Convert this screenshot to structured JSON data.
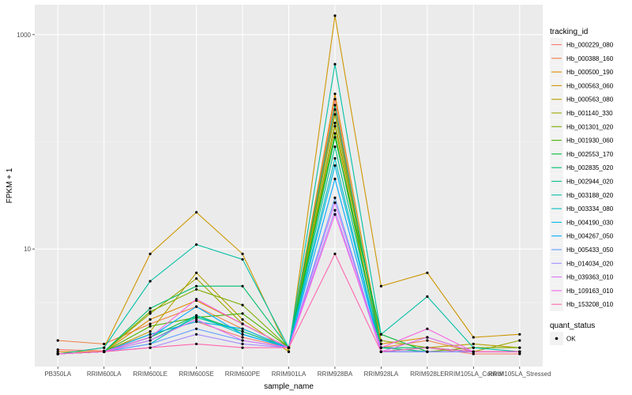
{
  "chart_data": {
    "type": "line",
    "title": "",
    "xlabel": "sample_name",
    "ylabel": "FPKM + 1",
    "y_scale": "log10",
    "ylim": [
      0.8,
      1900
    ],
    "y_ticks": [
      10,
      1000
    ],
    "y_tick_labels": [
      "10",
      "1000"
    ],
    "grid": true,
    "legend_position": "right",
    "categories": [
      "PB350LA",
      "RRIM600LA",
      "RRIM600LE",
      "RRIM600SE",
      "RRIM600PE",
      "RRIM901LA",
      "RRIM928BA",
      "RRIM928LA",
      "RRIM928LE",
      "RRIM105LA_Control",
      "RRIM105LA_Stressed"
    ],
    "color_legend": {
      "title": "tracking_id",
      "entries": [
        "Hb_000229_080",
        "Hb_000388_160",
        "Hb_000500_190",
        "Hb_000563_060",
        "Hb_000563_080",
        "Hb_001140_330",
        "Hb_001301_020",
        "Hb_001930_060",
        "Hb_002553_170",
        "Hb_002835_020",
        "Hb_002944_020",
        "Hb_003188_020",
        "Hb_003334_080",
        "Hb_004190_030",
        "Hb_004267_050",
        "Hb_005433_050",
        "Hb_014034_020",
        "Hb_039363_010",
        "Hb_109163_010",
        "Hb_153208_010"
      ]
    },
    "shape_legend": {
      "title": "quant_status",
      "entries": [
        "OK"
      ]
    },
    "series": [
      {
        "name": "Hb_000229_080",
        "color": "#F8766D",
        "values": [
          1.15,
          1.12,
          1.6,
          2.1,
          1.5,
          1.2,
          250,
          1.1,
          1.2,
          1.05,
          1.05
        ]
      },
      {
        "name": "Hb_000388_160",
        "color": "#EE8044",
        "values": [
          1.4,
          1.3,
          2.0,
          2.9,
          1.8,
          1.2,
          200,
          1.2,
          1.4,
          1.1,
          1.1
        ]
      },
      {
        "name": "Hb_000500_190",
        "color": "#DE8C00",
        "values": [
          1.1,
          1.1,
          2.2,
          3.3,
          2.0,
          1.2,
          280,
          1.3,
          1.5,
          1.1,
          1.1
        ]
      },
      {
        "name": "Hb_000563_060",
        "color": "#CD9600",
        "values": [
          1.05,
          1.2,
          9.0,
          22.0,
          9.0,
          1.1,
          1500,
          4.5,
          6.0,
          1.5,
          1.6
        ]
      },
      {
        "name": "Hb_000563_080",
        "color": "#B79F00",
        "values": [
          1.05,
          1.1,
          1.7,
          6.0,
          2.2,
          1.1,
          140,
          1.1,
          1.2,
          1.3,
          1.2
        ]
      },
      {
        "name": "Hb_001140_330",
        "color": "#9EA700",
        "values": [
          1.05,
          1.1,
          2.5,
          5.3,
          2.0,
          1.2,
          150,
          1.4,
          1.2,
          1.1,
          1.4
        ]
      },
      {
        "name": "Hb_001301_020",
        "color": "#7CAE00",
        "values": [
          1.05,
          1.1,
          2.6,
          4.2,
          3.0,
          1.2,
          180,
          1.2,
          1.1,
          1.2,
          1.2
        ]
      },
      {
        "name": "Hb_001930_060",
        "color": "#49B500",
        "values": [
          1.05,
          1.1,
          1.9,
          2.3,
          2.5,
          1.2,
          120,
          1.1,
          1.1,
          1.1,
          1.1
        ]
      },
      {
        "name": "Hb_002553_170",
        "color": "#00BA38",
        "values": [
          1.05,
          1.1,
          1.5,
          2.4,
          1.7,
          1.2,
          110,
          1.6,
          1.1,
          1.1,
          1.1
        ]
      },
      {
        "name": "Hb_002835_020",
        "color": "#00BE6C",
        "values": [
          1.05,
          1.1,
          2.8,
          4.5,
          4.5,
          1.2,
          220,
          1.2,
          1.2,
          1.1,
          1.1
        ]
      },
      {
        "name": "Hb_002944_020",
        "color": "#00C08B",
        "values": [
          1.05,
          1.1,
          1.4,
          2.3,
          1.7,
          1.2,
          90,
          1.2,
          1.1,
          1.1,
          1.1
        ]
      },
      {
        "name": "Hb_003188_020",
        "color": "#00C1A6",
        "values": [
          1.05,
          1.2,
          5.0,
          11.0,
          8.0,
          1.2,
          530,
          1.6,
          3.6,
          1.2,
          1.1
        ]
      },
      {
        "name": "Hb_003334_080",
        "color": "#00BFC4",
        "values": [
          1.05,
          1.1,
          1.3,
          2.4,
          1.6,
          1.2,
          70,
          1.1,
          1.1,
          1.1,
          1.1
        ]
      },
      {
        "name": "Hb_004190_030",
        "color": "#00B8E5",
        "values": [
          1.05,
          1.1,
          1.6,
          2.1,
          1.8,
          1.2,
          60,
          1.1,
          1.1,
          1.1,
          1.1
        ]
      },
      {
        "name": "Hb_004267_050",
        "color": "#00A9FF",
        "values": [
          1.05,
          1.1,
          1.5,
          2.9,
          1.6,
          1.2,
          45,
          1.1,
          1.2,
          1.1,
          1.1
        ]
      },
      {
        "name": "Hb_005433_050",
        "color": "#619CFF",
        "values": [
          1.05,
          1.1,
          1.3,
          1.8,
          1.4,
          1.2,
          30,
          1.1,
          1.1,
          1.1,
          1.1
        ]
      },
      {
        "name": "Hb_014034_020",
        "color": "#A58AFF",
        "values": [
          1.05,
          1.1,
          1.2,
          1.6,
          1.3,
          1.2,
          23,
          1.1,
          1.1,
          1.1,
          1.1
        ]
      },
      {
        "name": "Hb_039363_010",
        "color": "#DB72FB",
        "values": [
          1.05,
          1.1,
          1.4,
          2.2,
          1.4,
          1.2,
          27,
          1.1,
          1.5,
          1.1,
          1.1
        ]
      },
      {
        "name": "Hb_109163_010",
        "color": "#F564E3",
        "values": [
          1.05,
          1.1,
          1.5,
          3.4,
          2.0,
          1.2,
          21,
          1.2,
          1.8,
          1.1,
          1.1
        ]
      },
      {
        "name": "Hb_153208_010",
        "color": "#FF65AE",
        "values": [
          1.05,
          1.1,
          1.2,
          1.3,
          1.2,
          1.2,
          9,
          1.1,
          1.2,
          1.1,
          1.1
        ]
      }
    ]
  }
}
